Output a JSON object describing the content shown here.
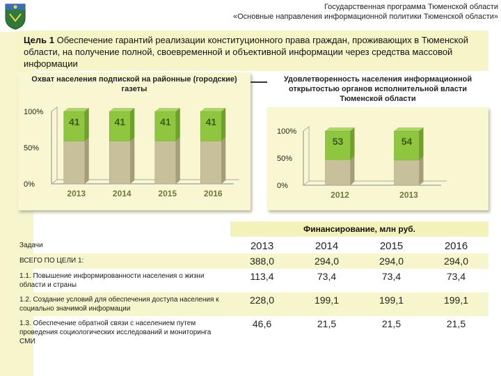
{
  "header": {
    "line1": "Государственная программа Тюменской области",
    "line2": "«Основные направления информационной политики Тюменской области»"
  },
  "goal": {
    "label": "Цель 1",
    "text": " Обеспечение гарантий реализации конституционного права граждан, проживающих в Тюменской области, на получение полной, своевременной и объективной информации через средства массовой информации"
  },
  "colors": {
    "top": "#8fc63f",
    "bottom": "#c8c09a",
    "panel": "#f8f7d2"
  },
  "chart_data": [
    {
      "type": "bar",
      "title": "Охват населения подпиской на районные (городские) газеты",
      "categories": [
        "2013",
        "2014",
        "2015",
        "2016"
      ],
      "values": [
        41,
        41,
        41,
        41
      ],
      "ylim": [
        0,
        100
      ],
      "yticks": [
        "0%",
        "50%",
        "100%"
      ],
      "stacked_total": 100
    },
    {
      "type": "bar",
      "title": "Удовлетворенность населения информационной открытостью органов исполнительной власти Тюменской области",
      "categories": [
        "2012",
        "2013"
      ],
      "values": [
        53,
        54
      ],
      "ylim": [
        0,
        100
      ],
      "yticks": [
        "0%",
        "50%",
        "100%"
      ],
      "stacked_total": 100
    }
  ],
  "funding": {
    "title": "Финансирование, млн руб.",
    "header_label": "Задачи",
    "years": [
      "2013",
      "2014",
      "2015",
      "2016"
    ],
    "rows": [
      {
        "task": "ВСЕГО ПО ЦЕЛИ 1:",
        "values": [
          "388,0",
          "294,0",
          "294,0",
          "294,0"
        ]
      },
      {
        "task": "1.1. Повышение информированности населения о жизни области и страны",
        "values": [
          "113,4",
          "73,4",
          "73,4",
          "73,4"
        ]
      },
      {
        "task": "1.2. Создание условий для обеспечения доступа населения к социально значимой информации",
        "values": [
          "228,0",
          "199,1",
          "199,1",
          "199,1"
        ]
      },
      {
        "task": "1.3. Обеспечение обратной связи с населением путем проведения социологических исследований и мониторинга СМИ",
        "values": [
          "46,6",
          "21,5",
          "21,5",
          "21,5"
        ]
      }
    ]
  }
}
